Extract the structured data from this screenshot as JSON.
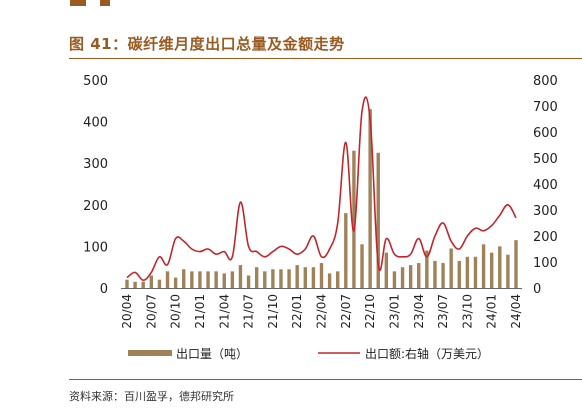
{
  "figure": {
    "title": "图 41：碳纤维月度出口总量及金额走势",
    "source": "资料来源：百川盈孚，德邦研究所"
  },
  "colors": {
    "accent": "#9a5b22",
    "bar": "#a0825a",
    "line": "#c0272d"
  },
  "chart_data": {
    "type": "bar",
    "x": [
      "20/04",
      "20/05",
      "20/06",
      "20/07",
      "20/08",
      "20/09",
      "20/10",
      "20/11",
      "20/12",
      "21/01",
      "21/02",
      "21/03",
      "21/04",
      "21/05",
      "21/06",
      "21/07",
      "21/08",
      "21/09",
      "21/10",
      "21/11",
      "21/12",
      "22/01",
      "22/02",
      "22/03",
      "22/04",
      "22/05",
      "22/06",
      "22/07",
      "22/08",
      "22/09",
      "22/10",
      "22/11",
      "22/12",
      "23/01",
      "23/02",
      "23/03",
      "23/04",
      "23/05",
      "23/06",
      "23/07",
      "23/08",
      "23/09",
      "23/10",
      "23/11",
      "23/12",
      "24/01",
      "24/02",
      "24/03",
      "24/04"
    ],
    "x_tick_labels": [
      "20/04",
      "20/07",
      "20/10",
      "21/01",
      "21/04",
      "21/07",
      "21/10",
      "22/01",
      "22/04",
      "22/07",
      "22/10",
      "23/01",
      "23/04",
      "23/07",
      "23/10",
      "24/01",
      "24/04"
    ],
    "series": [
      {
        "name": "出口量（吨）",
        "type": "bar",
        "axis": "left",
        "values": [
          20,
          15,
          15,
          30,
          20,
          40,
          25,
          45,
          40,
          40,
          40,
          40,
          35,
          40,
          55,
          30,
          50,
          40,
          45,
          45,
          45,
          55,
          50,
          50,
          60,
          35,
          40,
          180,
          330,
          105,
          430,
          325,
          85,
          40,
          50,
          55,
          60,
          90,
          65,
          60,
          95,
          65,
          75,
          75,
          105,
          85,
          100,
          80,
          115
        ]
      },
      {
        "name": "出口额:右轴（万美元）",
        "type": "line",
        "axis": "right",
        "values": [
          40,
          60,
          30,
          60,
          120,
          90,
          190,
          180,
          150,
          140,
          150,
          130,
          140,
          120,
          330,
          160,
          140,
          120,
          140,
          160,
          150,
          130,
          150,
          200,
          120,
          150,
          250,
          560,
          220,
          680,
          650,
          90,
          190,
          130,
          120,
          130,
          190,
          120,
          200,
          250,
          180,
          150,
          200,
          230,
          220,
          240,
          280,
          320,
          270
        ]
      }
    ],
    "y_left": {
      "min": 0,
      "max": 500,
      "ticks": [
        0,
        100,
        200,
        300,
        400,
        500
      ]
    },
    "y_right": {
      "min": 0,
      "max": 800,
      "ticks": [
        0,
        100,
        200,
        300,
        400,
        500,
        600,
        700,
        800
      ]
    },
    "legend": {
      "placement": "bottom"
    },
    "grid": false
  }
}
